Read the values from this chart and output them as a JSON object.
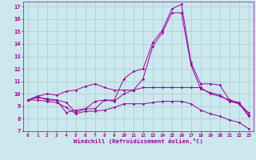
{
  "xlabel": "Windchill (Refroidissement éolien,°C)",
  "bg_color": "#cce8ee",
  "line_color": "#990099",
  "grid_color": "#aacccc",
  "xlim": [
    -0.5,
    23.5
  ],
  "ylim": [
    7,
    17.4
  ],
  "xticks": [
    0,
    1,
    2,
    3,
    4,
    5,
    6,
    7,
    8,
    9,
    10,
    11,
    12,
    13,
    14,
    15,
    16,
    17,
    18,
    19,
    20,
    21,
    22,
    23
  ],
  "yticks": [
    7,
    8,
    9,
    10,
    11,
    12,
    13,
    14,
    15,
    16,
    17
  ],
  "lines": [
    {
      "x": [
        0,
        1,
        2,
        3,
        4,
        5,
        6,
        7,
        8,
        9,
        10,
        11,
        12,
        13,
        14,
        15,
        16,
        17,
        18,
        19,
        20,
        21,
        22,
        23
      ],
      "y": [
        9.5,
        9.8,
        9.5,
        9.5,
        8.5,
        8.7,
        8.8,
        8.8,
        9.5,
        9.5,
        11.2,
        11.8,
        12.0,
        14.1,
        15.1,
        16.8,
        17.2,
        12.5,
        10.8,
        10.8,
        10.7,
        9.5,
        9.2,
        8.5
      ]
    },
    {
      "x": [
        0,
        1,
        2,
        3,
        4,
        5,
        6,
        7,
        8,
        9,
        10,
        11,
        12,
        13,
        14,
        15,
        16,
        17,
        18,
        19,
        20,
        21,
        22,
        23
      ],
      "y": [
        9.5,
        9.7,
        9.6,
        9.5,
        9.3,
        8.5,
        8.8,
        9.4,
        9.5,
        9.4,
        10.0,
        10.3,
        11.2,
        13.8,
        14.9,
        16.5,
        16.5,
        12.3,
        10.4,
        10.1,
        9.9,
        9.4,
        9.2,
        8.2
      ]
    },
    {
      "x": [
        0,
        1,
        2,
        3,
        4,
        5,
        6,
        7,
        8,
        9,
        10,
        11,
        12,
        13,
        14,
        15,
        16,
        17,
        18,
        19,
        20,
        21,
        22,
        23
      ],
      "y": [
        9.5,
        9.8,
        10.0,
        9.9,
        10.2,
        10.3,
        10.6,
        10.8,
        10.5,
        10.3,
        10.3,
        10.3,
        10.5,
        10.5,
        10.5,
        10.5,
        10.5,
        10.5,
        10.5,
        10.0,
        9.8,
        9.5,
        9.3,
        8.3
      ]
    },
    {
      "x": [
        0,
        1,
        2,
        3,
        4,
        5,
        6,
        7,
        8,
        9,
        10,
        11,
        12,
        13,
        14,
        15,
        16,
        17,
        18,
        19,
        20,
        21,
        22,
        23
      ],
      "y": [
        9.5,
        9.5,
        9.4,
        9.3,
        8.9,
        8.4,
        8.6,
        8.6,
        8.7,
        8.9,
        9.2,
        9.2,
        9.2,
        9.3,
        9.4,
        9.4,
        9.4,
        9.2,
        8.7,
        8.4,
        8.2,
        7.9,
        7.7,
        7.2
      ]
    }
  ]
}
